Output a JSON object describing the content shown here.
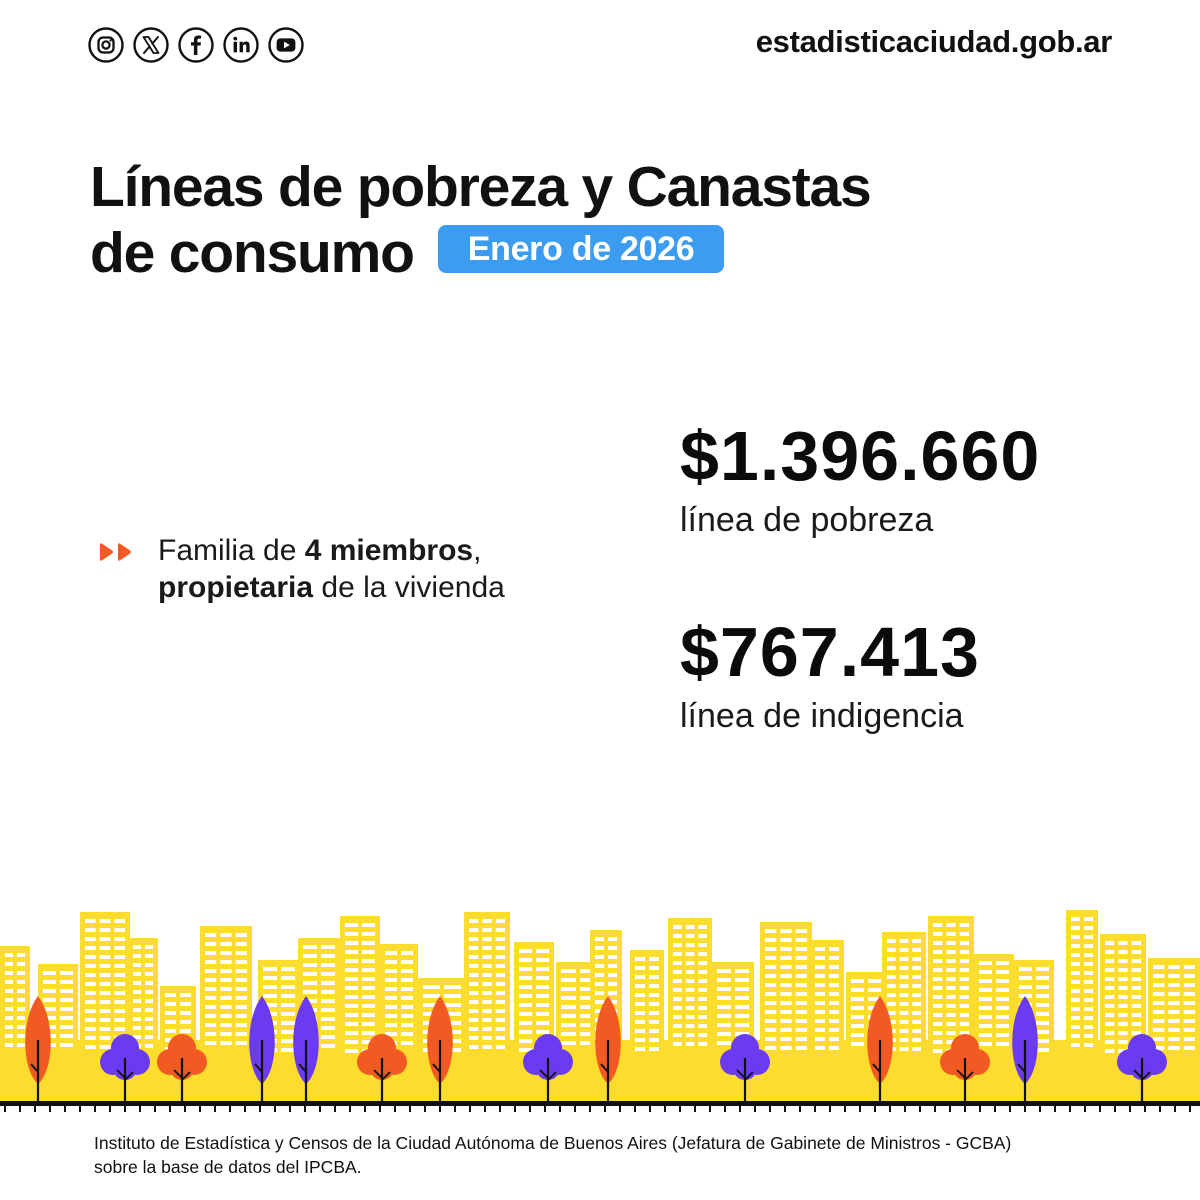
{
  "header": {
    "social_icons": [
      "instagram-icon",
      "x-icon",
      "facebook-icon",
      "linkedin-icon",
      "youtube-icon"
    ],
    "site_url": "estadisticaciudad.gob.ar"
  },
  "title": {
    "line1": "Líneas de pobreza y Canastas",
    "line2": "de consumo",
    "badge": "Enero de 2026"
  },
  "family": {
    "prefix": "Familia de ",
    "members": "4 miembros",
    "comma": ",",
    "owner": "propietaria",
    "suffix": " de la vivienda"
  },
  "stats": [
    {
      "amount": "$1.396.660",
      "label": "línea de pobreza"
    },
    {
      "amount": "$767.413",
      "label": "línea de indigencia"
    }
  ],
  "footer": {
    "source_line1": "Instituto de Estadística y Censos de la Ciudad Autónoma de Buenos Aires (Jefatura de Gabinete de Ministros - GCBA)",
    "source_line2": "sobre la base de datos del IPCBA."
  },
  "colors": {
    "accent_blue": "#3b9cf0",
    "arrow_orange": "#f15a22",
    "building_yellow": "#fcdc2c",
    "tree_orange": "#f15a22",
    "tree_purple": "#6a3bf0"
  }
}
